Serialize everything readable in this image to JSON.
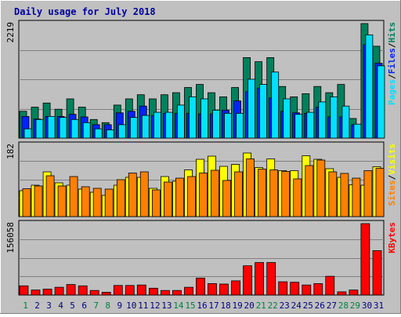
{
  "title": "Daily usage for July 2018",
  "colors": {
    "frame_bg": "#c0c0c0",
    "plot_bg": "#c0c0c0",
    "hits": "#00805c",
    "files": "#0024ff",
    "pages": "#00e0ff",
    "visits": "#ffff00",
    "sites": "#ff8000",
    "kbytes": "#ff0000",
    "title": "#0000a0",
    "weekend_day": "#008040",
    "weekday": "#000080"
  },
  "chart_data": [
    {
      "type": "bar",
      "name": "hits-files-pages",
      "axis_max_label": "2219",
      "ylim": [
        0,
        2219
      ],
      "categories": [
        "1",
        "2",
        "3",
        "4",
        "5",
        "6",
        "7",
        "8",
        "9",
        "10",
        "11",
        "12",
        "13",
        "14",
        "15",
        "16",
        "17",
        "18",
        "19",
        "20",
        "21",
        "22",
        "23",
        "24",
        "25",
        "26",
        "27",
        "28",
        "29",
        "30",
        "31"
      ],
      "legend": [
        "Pages",
        "Files",
        "Hits"
      ],
      "series": [
        {
          "name": "Hits",
          "values": [
            520,
            600,
            680,
            560,
            760,
            600,
            360,
            300,
            640,
            760,
            840,
            760,
            840,
            880,
            980,
            1040,
            880,
            800,
            980,
            1560,
            1480,
            1560,
            1000,
            800,
            860,
            1000,
            880,
            1040,
            380,
            2219,
            1780
          ]
        },
        {
          "name": "Files",
          "values": [
            420,
            370,
            420,
            420,
            460,
            410,
            260,
            260,
            490,
            520,
            620,
            440,
            480,
            480,
            480,
            470,
            470,
            540,
            720,
            900,
            970,
            780,
            520,
            490,
            480,
            600,
            410,
            410,
            260,
            1810,
            1450
          ]
        },
        {
          "name": "Pages",
          "values": [
            180,
            360,
            420,
            400,
            360,
            300,
            180,
            160,
            260,
            400,
            440,
            500,
            500,
            640,
            800,
            760,
            540,
            480,
            480,
            1140,
            1040,
            1280,
            760,
            460,
            500,
            700,
            800,
            620,
            270,
            2000,
            1400
          ]
        }
      ]
    },
    {
      "type": "bar",
      "name": "visits-sites",
      "axis_max_label": "182",
      "ylim": [
        0,
        182
      ],
      "categories": [
        "1",
        "2",
        "3",
        "4",
        "5",
        "6",
        "7",
        "8",
        "9",
        "10",
        "11",
        "12",
        "13",
        "14",
        "15",
        "16",
        "17",
        "18",
        "19",
        "20",
        "21",
        "22",
        "23",
        "24",
        "25",
        "26",
        "27",
        "28",
        "29",
        "30",
        "31"
      ],
      "legend": [
        "Sites",
        "Visits"
      ],
      "series": [
        {
          "name": "Visits",
          "values": [
            66,
            80,
            114,
            86,
            80,
            70,
            62,
            54,
            80,
            100,
            100,
            72,
            102,
            90,
            119,
            146,
            154,
            128,
            133,
            162,
            125,
            147,
            117,
            117,
            155,
            146,
            122,
            100,
            81,
            80,
            127
          ]
        },
        {
          "name": "Sites",
          "values": [
            71,
            78,
            104,
            78,
            102,
            76,
            72,
            70,
            94,
            111,
            114,
            68,
            88,
            98,
            102,
            111,
            118,
            92,
            114,
            147,
            121,
            119,
            115,
            96,
            130,
            144,
            114,
            110,
            98,
            117,
            123
          ]
        }
      ]
    },
    {
      "type": "bar",
      "name": "kbytes",
      "axis_max_label": "156058",
      "ylim": [
        0,
        156058
      ],
      "categories": [
        "1",
        "2",
        "3",
        "4",
        "5",
        "6",
        "7",
        "8",
        "9",
        "10",
        "11",
        "12",
        "13",
        "14",
        "15",
        "16",
        "17",
        "18",
        "19",
        "20",
        "21",
        "22",
        "23",
        "24",
        "25",
        "26",
        "27",
        "28",
        "29",
        "30",
        "31"
      ],
      "legend": [
        "KBytes"
      ],
      "series": [
        {
          "name": "KBytes",
          "values": [
            20000,
            11000,
            13000,
            17000,
            23000,
            20000,
            10000,
            6000,
            21000,
            21000,
            22000,
            15000,
            10000,
            10000,
            17000,
            37000,
            25000,
            24000,
            31000,
            64000,
            71000,
            71000,
            29000,
            28000,
            22000,
            25000,
            41000,
            7000,
            11000,
            156058,
            97000
          ]
        }
      ]
    }
  ],
  "x_labels": [
    {
      "text": "1",
      "weekend": true
    },
    {
      "text": "2",
      "weekend": false
    },
    {
      "text": "3",
      "weekend": false
    },
    {
      "text": "4",
      "weekend": false
    },
    {
      "text": "5",
      "weekend": false
    },
    {
      "text": "6",
      "weekend": false
    },
    {
      "text": "7",
      "weekend": true
    },
    {
      "text": "8",
      "weekend": true
    },
    {
      "text": "9",
      "weekend": false
    },
    {
      "text": "10",
      "weekend": false
    },
    {
      "text": "11",
      "weekend": false
    },
    {
      "text": "12",
      "weekend": false
    },
    {
      "text": "13",
      "weekend": false
    },
    {
      "text": "14",
      "weekend": true
    },
    {
      "text": "15",
      "weekend": true
    },
    {
      "text": "16",
      "weekend": false
    },
    {
      "text": "17",
      "weekend": false
    },
    {
      "text": "18",
      "weekend": false
    },
    {
      "text": "19",
      "weekend": false
    },
    {
      "text": "20",
      "weekend": false
    },
    {
      "text": "21",
      "weekend": true
    },
    {
      "text": "22",
      "weekend": true
    },
    {
      "text": "23",
      "weekend": false
    },
    {
      "text": "24",
      "weekend": false
    },
    {
      "text": "25",
      "weekend": false
    },
    {
      "text": "26",
      "weekend": false
    },
    {
      "text": "27",
      "weekend": false
    },
    {
      "text": "28",
      "weekend": true
    },
    {
      "text": "29",
      "weekend": true
    },
    {
      "text": "30",
      "weekend": false
    },
    {
      "text": "31",
      "weekend": false
    }
  ]
}
